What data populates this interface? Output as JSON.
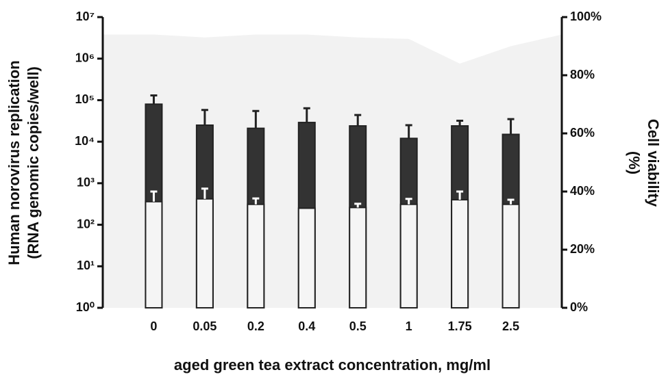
{
  "chart_data": {
    "type": "bar",
    "categories": [
      "0",
      "0.05",
      "0.2",
      "0.4",
      "0.5",
      "1",
      "1.75",
      "2.5"
    ],
    "series": [
      {
        "type": "area",
        "axis": "y2",
        "color": "#f2f2f2",
        "values": [
          94,
          93,
          94,
          94,
          93,
          92.5,
          84,
          90
        ]
      },
      {
        "type": "bar",
        "color": "#333333",
        "error_color": "#222222",
        "values": [
          80000,
          25000,
          21000,
          29000,
          24000,
          12000,
          24000,
          15000
        ],
        "errors": [
          50000,
          33000,
          34000,
          35000,
          20000,
          13000,
          8000,
          20000
        ]
      },
      {
        "type": "bar",
        "color": "#f5f5f5",
        "error_color": "#ffffff",
        "values": [
          360,
          420,
          310,
          250,
          260,
          310,
          400,
          310
        ],
        "errors": [
          270,
          320,
          120,
          0,
          60,
          110,
          230,
          90
        ]
      }
    ],
    "log_y": true,
    "ylim": [
      1,
      10000000
    ],
    "yticks": [
      {
        "value": 1,
        "label": "10⁰"
      },
      {
        "value": 10,
        "label": "10¹"
      },
      {
        "value": 100,
        "label": "10²"
      },
      {
        "value": 1000,
        "label": "10³"
      },
      {
        "value": 10000,
        "label": "10⁴"
      },
      {
        "value": 100000,
        "label": "10⁵"
      },
      {
        "value": 1000000,
        "label": "10⁶"
      },
      {
        "value": 10000000,
        "label": "10⁷"
      }
    ],
    "y2lim": [
      0,
      100
    ],
    "y2ticks": [
      {
        "value": 0,
        "label": "0%"
      },
      {
        "value": 20,
        "label": "20%"
      },
      {
        "value": 40,
        "label": "40%"
      },
      {
        "value": 60,
        "label": "60%"
      },
      {
        "value": 80,
        "label": "80%"
      },
      {
        "value": 100,
        "label": "100%"
      }
    ],
    "ylabel": [
      "Human norovirus replication",
      "(RNA genomic copies/well)"
    ],
    "y2label": [
      "Cell viability",
      "(%)"
    ],
    "xlabel": "aged green tea extract concentration, mg/ml"
  }
}
